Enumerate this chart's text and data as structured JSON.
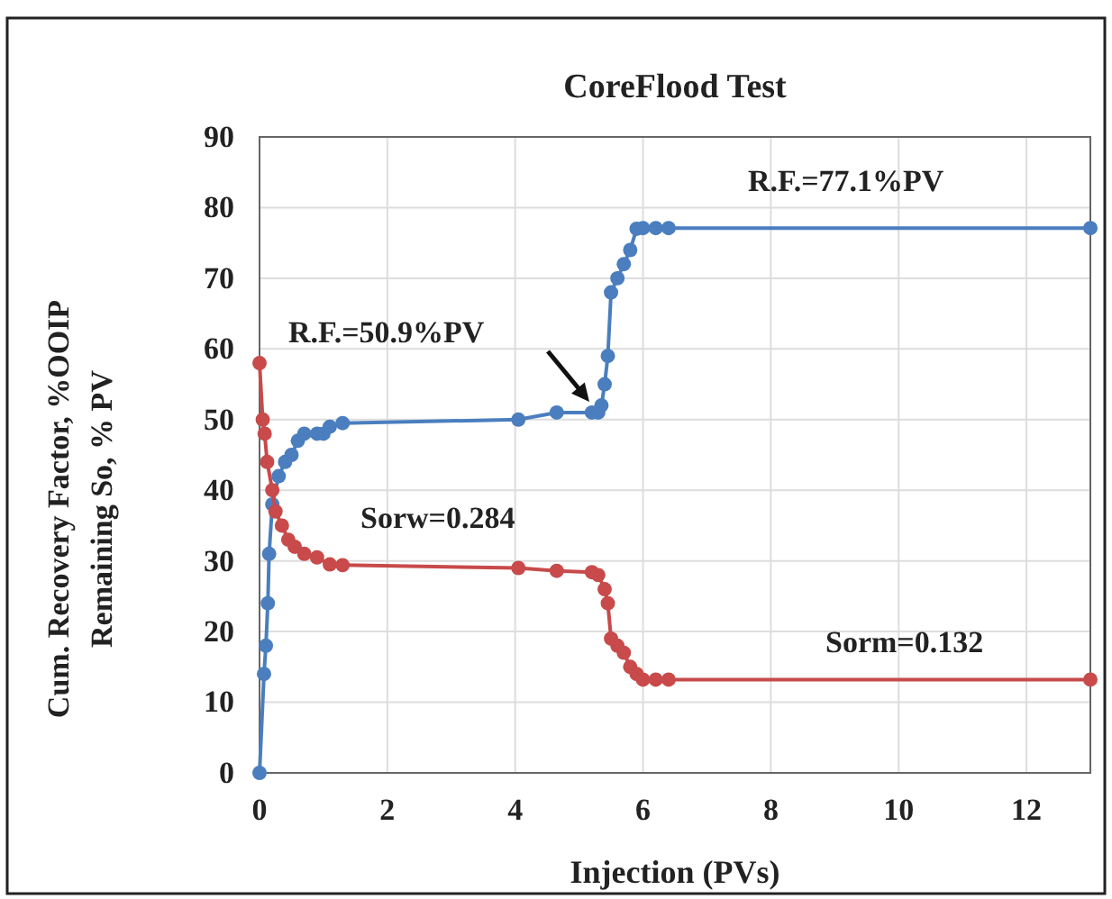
{
  "chart_data": {
    "type": "line",
    "title": "CoreFlood Test",
    "xlabel": "Injection (PVs)",
    "ylabel": "Cum. Recovery Factor, %OOIP\nRemaining So, % PV",
    "xlim": [
      0,
      13
    ],
    "xticks": [
      0,
      2,
      4,
      6,
      8,
      10,
      12
    ],
    "ylim": [
      0,
      90
    ],
    "yticks": [
      0,
      10,
      20,
      30,
      40,
      50,
      60,
      70,
      80,
      90
    ],
    "grid": true,
    "marker": "circle",
    "line_style": "solid",
    "series": [
      {
        "color": "#4a7ebf",
        "x": [
          0,
          0.07,
          0.1,
          0.13,
          0.15,
          0.2,
          0.3,
          0.4,
          0.5,
          0.6,
          0.7,
          0.9,
          1.0,
          1.1,
          1.3,
          4.05,
          4.65,
          5.2,
          5.3,
          5.35,
          5.4,
          5.45,
          5.5,
          5.6,
          5.7,
          5.8,
          5.9,
          6.0,
          6.2,
          6.4,
          13
        ],
        "values": [
          0,
          14,
          18,
          24,
          31,
          38,
          42,
          44,
          45,
          47,
          48,
          48,
          48,
          49,
          49.5,
          50,
          51,
          51,
          51,
          52,
          55,
          59,
          68,
          70,
          72,
          74,
          77,
          77.1,
          77.1,
          77.1,
          77.1
        ]
      },
      {
        "color": "#c84a4a",
        "x": [
          0,
          0.05,
          0.08,
          0.12,
          0.2,
          0.25,
          0.35,
          0.45,
          0.55,
          0.7,
          0.9,
          1.1,
          1.3,
          4.05,
          4.65,
          5.2,
          5.3,
          5.4,
          5.45,
          5.5,
          5.6,
          5.7,
          5.8,
          5.9,
          6.0,
          6.2,
          6.4,
          13
        ],
        "values": [
          58,
          50,
          48,
          44,
          40,
          37,
          35,
          33,
          32,
          31,
          30.5,
          29.5,
          29.4,
          29,
          28.6,
          28.4,
          28,
          26,
          24,
          19,
          18,
          17,
          15,
          14,
          13.2,
          13.2,
          13.2,
          13.2
        ]
      }
    ],
    "annotations": [
      "R.F.=77.1%PV",
      "R.F.=50.9%PV",
      "Sorw=0.284",
      "Sorm=0.132"
    ]
  }
}
